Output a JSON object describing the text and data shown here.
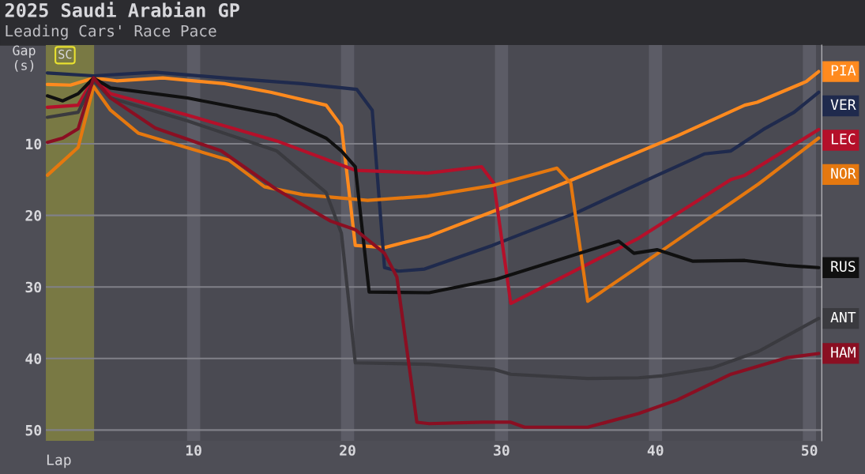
{
  "chart_data": {
    "type": "line",
    "title": "2025 Saudi Arabian GP",
    "subtitle": "Leading Cars' Race Pace",
    "xlabel": "Lap",
    "ylabel": "Gap\n(s)",
    "xlim": [
      0.4,
      50.8
    ],
    "ylim": [
      51.5,
      -3.8
    ],
    "xticks": [
      10,
      20,
      30,
      40,
      50
    ],
    "yticks": [
      10,
      20,
      30,
      40,
      50
    ],
    "grid": true,
    "legend": "right",
    "marker": "none",
    "line_style": "solid",
    "bands": [
      {
        "axis": "x",
        "from": 0.4,
        "to": 3.5,
        "label": "SC",
        "color": "#8a8a40"
      }
    ],
    "series": [
      {
        "name": "PIA",
        "color": "#ff8a1e",
        "x": [
          0.5,
          2,
          3.5,
          5,
          8,
          12,
          15,
          18.6,
          19.6,
          20.5,
          22.4,
          25.3,
          30,
          34.5,
          41.4,
          45.8,
          46.6,
          49.8,
          50.6
        ],
        "values": [
          1.7,
          1.8,
          0.8,
          1.2,
          0.8,
          1.6,
          2.8,
          4.6,
          7.5,
          24.2,
          24.5,
          22.9,
          19,
          15.1,
          8.9,
          4.6,
          4.2,
          1.3,
          -0.1
        ]
      },
      {
        "name": "VER",
        "color": "#1f2a4d",
        "x": [
          0.5,
          3.5,
          7.5,
          12,
          17,
          20.6,
          21.6,
          22.4,
          23.3,
          25,
          29.4,
          35,
          40,
          43.2,
          44.9,
          47,
          49,
          50.6
        ],
        "values": [
          0.1,
          0.5,
          0,
          0.8,
          1.6,
          2.4,
          5.3,
          27.3,
          27.8,
          27.5,
          24.2,
          19.5,
          14.5,
          11.4,
          11,
          8,
          5.6,
          2.8
        ]
      },
      {
        "name": "LEC",
        "color": "#b5102a",
        "x": [
          0.5,
          2.5,
          3.5,
          4.6,
          9.6,
          15.4,
          20.5,
          25.2,
          28.7,
          29.5,
          30.6,
          38.9,
          44.9,
          45.8,
          50.6
        ],
        "values": [
          4.9,
          4.6,
          0.8,
          3.0,
          6.0,
          9.6,
          13.7,
          14.1,
          13.2,
          15.5,
          32.3,
          23.2,
          15,
          14.4,
          8.0
        ]
      },
      {
        "name": "NOR",
        "color": "#e5780f",
        "x": [
          0.5,
          2.5,
          3.5,
          4.6,
          6.4,
          12.3,
          14.6,
          17.1,
          21.3,
          25.2,
          29.5,
          33.6,
          34.5,
          35.6,
          40.5,
          43.2,
          46.7,
          50.6
        ],
        "values": [
          14.4,
          10.5,
          2.0,
          5.3,
          8.5,
          12.3,
          16,
          17.1,
          17.9,
          17.3,
          15.8,
          13.4,
          15.5,
          32,
          24.8,
          20.8,
          15.6,
          9.2
        ]
      },
      {
        "name": "RUS",
        "color": "#101010",
        "x": [
          0.5,
          1.5,
          2.5,
          3.5,
          4.6,
          9.6,
          15.4,
          18.6,
          19.6,
          20.5,
          21.4,
          25.3,
          29.7,
          37.6,
          38.6,
          40.1,
          42.4,
          45.8,
          48.5,
          50.6
        ],
        "values": [
          3.3,
          4.0,
          3.0,
          0.8,
          2.2,
          3.6,
          6.0,
          9.2,
          11.0,
          13.2,
          30.7,
          30.8,
          28.9,
          23.6,
          25.3,
          24.8,
          26.4,
          26.3,
          27,
          27.3
        ]
      },
      {
        "name": "ANT",
        "color": "#3a3a3f",
        "x": [
          0.5,
          2.5,
          3.5,
          4.6,
          9.6,
          15.4,
          18.6,
          19.6,
          20.5,
          25.2,
          29.5,
          30.6,
          35.6,
          38.9,
          40.5,
          43.7,
          46.7,
          50.6
        ],
        "values": [
          6.3,
          5.6,
          1.2,
          3.6,
          6.8,
          11.0,
          16.8,
          22.5,
          40.6,
          40.8,
          41.5,
          42.2,
          42.8,
          42.7,
          42.4,
          41.3,
          39,
          34.4
        ]
      },
      {
        "name": "HAM",
        "color": "#8a0f22",
        "x": [
          0.5,
          1.5,
          2.5,
          3.5,
          4.6,
          7.5,
          11.8,
          15.4,
          18.9,
          20.5,
          22.4,
          23.2,
          24.5,
          25.3,
          28.8,
          30.6,
          31.5,
          35.6,
          38.9,
          41.4,
          44.9,
          48.5,
          50.6
        ],
        "values": [
          9.8,
          9.2,
          7.9,
          0.8,
          3.6,
          7.8,
          11,
          16.4,
          20.8,
          22,
          25.3,
          28.6,
          48.9,
          49.1,
          48.9,
          48.9,
          49.6,
          49.6,
          47.7,
          45.8,
          42.2,
          39.9,
          39.3
        ]
      }
    ]
  }
}
